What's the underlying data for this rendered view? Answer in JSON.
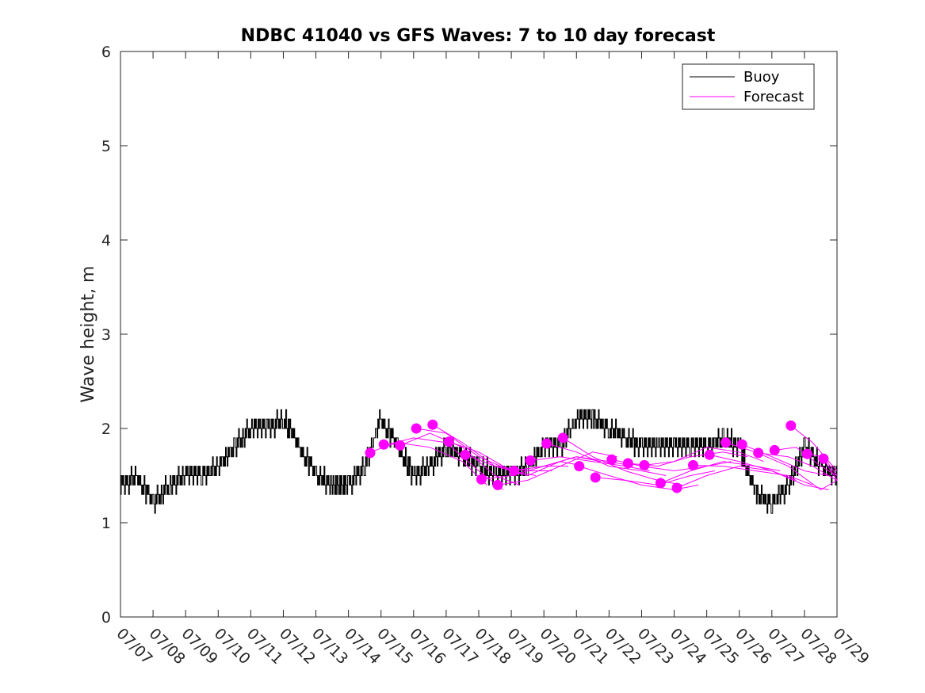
{
  "chart_data": {
    "type": "line",
    "title": "NDBC 41040 vs GFS Waves: 7 to 10 day forecast",
    "xlabel": "",
    "ylabel": "Wave height, m",
    "xlim": [
      "07/07",
      "07/29"
    ],
    "ylim": [
      0,
      6
    ],
    "xticks": [
      "07/07",
      "07/08",
      "07/09",
      "07/10",
      "07/11",
      "07/12",
      "07/13",
      "07/14",
      "07/15",
      "07/16",
      "07/17",
      "07/18",
      "07/19",
      "07/20",
      "07/21",
      "07/22",
      "07/23",
      "07/24",
      "07/25",
      "07/26",
      "07/27",
      "07/28",
      "07/29"
    ],
    "yticks": [
      "0",
      "1",
      "2",
      "3",
      "4",
      "5",
      "6"
    ],
    "grid": false,
    "legend": {
      "position": "top-right",
      "entries": [
        {
          "label": "Buoy",
          "color": "#000000"
        },
        {
          "label": "Forecast",
          "color": "#ff00ff"
        }
      ]
    },
    "series": [
      {
        "name": "Buoy",
        "color": "#000000",
        "x": [
          "07/07",
          "07/07 12:00",
          "07/08",
          "07/08 12:00",
          "07/09",
          "07/09 12:00",
          "07/10",
          "07/10 12:00",
          "07/11",
          "07/11 12:00",
          "07/12",
          "07/12 12:00",
          "07/13",
          "07/13 12:00",
          "07/14",
          "07/14 12:00",
          "07/15",
          "07/15 12:00",
          "07/16",
          "07/16 12:00",
          "07/17",
          "07/17 12:00",
          "07/18",
          "07/18 12:00",
          "07/19",
          "07/19 12:00",
          "07/20",
          "07/20 12:00",
          "07/21",
          "07/21 12:00",
          "07/22",
          "07/22 12:00",
          "07/23",
          "07/23 12:00",
          "07/24",
          "07/24 12:00",
          "07/25",
          "07/25 12:00",
          "07/26",
          "07/26 12:00",
          "07/27",
          "07/27 12:00",
          "07/28",
          "07/28 12:00",
          "07/29"
        ],
        "values": [
          1.4,
          1.5,
          1.2,
          1.4,
          1.5,
          1.5,
          1.6,
          1.8,
          2.0,
          2.0,
          2.1,
          1.8,
          1.5,
          1.4,
          1.4,
          1.6,
          2.1,
          1.8,
          1.5,
          1.6,
          1.8,
          1.7,
          1.6,
          1.5,
          1.5,
          1.6,
          1.8,
          1.8,
          2.1,
          2.1,
          2.0,
          1.9,
          1.8,
          1.8,
          1.8,
          1.8,
          1.8,
          1.9,
          1.8,
          1.3,
          1.2,
          1.4,
          1.8,
          1.6,
          1.5
        ]
      }
    ],
    "forecasts": {
      "color": "#ff00ff",
      "runs": [
        {
          "x": [
            "07/14 16:00",
            "07/15 12:00",
            "07/16 12:00",
            "07/17 12:00",
            "07/18 06:00"
          ],
          "values": [
            1.75,
            1.85,
            1.8,
            1.65,
            1.4
          ],
          "marker": {
            "x": "07/14 16:00",
            "y": 1.74
          }
        },
        {
          "x": [
            "07/15 02:00",
            "07/16 00:00",
            "07/17 00:00",
            "07/18 00:00",
            "07/18 18:00"
          ],
          "values": [
            1.82,
            1.9,
            1.85,
            1.55,
            1.35
          ],
          "marker": {
            "x": "07/15 02:00",
            "y": 1.83
          }
        },
        {
          "x": [
            "07/15 14:00",
            "07/16 12:00",
            "07/17 12:00",
            "07/18 12:00",
            "07/19 06:00"
          ],
          "values": [
            1.82,
            1.95,
            1.8,
            1.5,
            1.4
          ],
          "marker": {
            "x": "07/15 14:00",
            "y": 1.82
          }
        },
        {
          "x": [
            "07/16 02:00",
            "07/17 00:00",
            "07/18 00:00",
            "07/19 00:00",
            "07/19 18:00"
          ],
          "values": [
            2.0,
            1.95,
            1.7,
            1.55,
            1.5
          ],
          "marker": {
            "x": "07/16 02:00",
            "y": 2.0
          }
        },
        {
          "x": [
            "07/16 14:00",
            "07/17 12:00",
            "07/18 12:00",
            "07/19 12:00",
            "07/20 06:00"
          ],
          "values": [
            2.04,
            1.85,
            1.6,
            1.55,
            1.55
          ],
          "marker": {
            "x": "07/16 14:00",
            "y": 2.04
          }
        },
        {
          "x": [
            "07/17 02:00",
            "07/18 00:00",
            "07/19 00:00",
            "07/20 00:00",
            "07/20 18:00"
          ],
          "values": [
            1.86,
            1.75,
            1.55,
            1.6,
            1.6
          ],
          "marker": {
            "x": "07/17 02:00",
            "y": 1.86
          }
        },
        {
          "x": [
            "07/17 14:00",
            "07/18 12:00",
            "07/19 12:00",
            "07/20 12:00",
            "07/21 06:00"
          ],
          "values": [
            1.72,
            1.6,
            1.5,
            1.65,
            1.6
          ],
          "marker": {
            "x": "07/17 14:00",
            "y": 1.72
          }
        },
        {
          "x": [
            "07/18 02:00",
            "07/19 00:00",
            "07/20 00:00",
            "07/21 00:00",
            "07/21 18:00"
          ],
          "values": [
            1.46,
            1.5,
            1.6,
            1.7,
            1.65
          ],
          "marker": {
            "x": "07/18 02:00",
            "y": 1.46
          }
        },
        {
          "x": [
            "07/18 14:00",
            "07/19 12:00",
            "07/20 12:00",
            "07/21 12:00",
            "07/22 06:00"
          ],
          "values": [
            1.4,
            1.45,
            1.6,
            1.75,
            1.7
          ],
          "marker": {
            "x": "07/18 14:00",
            "y": 1.4
          }
        },
        {
          "x": [
            "07/19 02:00",
            "07/20 00:00",
            "07/21 00:00",
            "07/22 00:00",
            "07/22 18:00"
          ],
          "values": [
            1.55,
            1.6,
            1.7,
            1.65,
            1.6
          ],
          "marker": {
            "x": "07/19 02:00",
            "y": 1.55
          }
        },
        {
          "x": [
            "07/19 14:00",
            "07/20 12:00",
            "07/21 12:00",
            "07/22 12:00",
            "07/23 06:00"
          ],
          "values": [
            1.66,
            1.7,
            1.65,
            1.6,
            1.55
          ],
          "marker": {
            "x": "07/19 14:00",
            "y": 1.66
          }
        },
        {
          "x": [
            "07/20 02:00",
            "07/21 00:00",
            "07/22 00:00",
            "07/23 00:00",
            "07/23 18:00"
          ],
          "values": [
            1.84,
            1.75,
            1.6,
            1.55,
            1.5
          ],
          "marker": {
            "x": "07/20 02:00",
            "y": 1.84
          }
        },
        {
          "x": [
            "07/20 14:00",
            "07/21 12:00",
            "07/22 12:00",
            "07/23 12:00",
            "07/24 06:00"
          ],
          "values": [
            1.9,
            1.7,
            1.55,
            1.45,
            1.4
          ],
          "marker": {
            "x": "07/20 14:00",
            "y": 1.9
          }
        },
        {
          "x": [
            "07/21 02:00",
            "07/22 00:00",
            "07/23 00:00",
            "07/24 00:00",
            "07/24 18:00"
          ],
          "values": [
            1.6,
            1.5,
            1.4,
            1.35,
            1.4
          ],
          "marker": {
            "x": "07/21 02:00",
            "y": 1.6
          }
        },
        {
          "x": [
            "07/21 14:00",
            "07/22 12:00",
            "07/23 12:00",
            "07/24 12:00",
            "07/25 06:00"
          ],
          "values": [
            1.48,
            1.45,
            1.4,
            1.5,
            1.55
          ],
          "marker": {
            "x": "07/21 14:00",
            "y": 1.48
          }
        },
        {
          "x": [
            "07/22 02:00",
            "07/23 00:00",
            "07/24 00:00",
            "07/25 00:00",
            "07/25 18:00"
          ],
          "values": [
            1.67,
            1.6,
            1.55,
            1.6,
            1.65
          ],
          "marker": {
            "x": "07/22 02:00",
            "y": 1.67
          }
        },
        {
          "x": [
            "07/22 14:00",
            "07/23 12:00",
            "07/24 12:00",
            "07/25 12:00",
            "07/26 06:00"
          ],
          "values": [
            1.63,
            1.6,
            1.7,
            1.75,
            1.7
          ],
          "marker": {
            "x": "07/22 14:00",
            "y": 1.63
          }
        },
        {
          "x": [
            "07/23 02:00",
            "07/24 00:00",
            "07/25 00:00",
            "07/26 00:00",
            "07/26 18:00"
          ],
          "values": [
            1.61,
            1.65,
            1.8,
            1.75,
            1.65
          ],
          "marker": {
            "x": "07/23 02:00",
            "y": 1.61
          }
        },
        {
          "x": [
            "07/23 14:00",
            "07/24 12:00",
            "07/25 12:00",
            "07/26 12:00",
            "07/27 06:00"
          ],
          "values": [
            1.42,
            1.55,
            1.65,
            1.6,
            1.55
          ],
          "marker": {
            "x": "07/23 14:00",
            "y": 1.42
          }
        },
        {
          "x": [
            "07/24 02:00",
            "07/25 00:00",
            "07/26 00:00",
            "07/27 00:00",
            "07/27 18:00"
          ],
          "values": [
            1.37,
            1.5,
            1.6,
            1.55,
            1.45
          ],
          "marker": {
            "x": "07/24 02:00",
            "y": 1.37
          }
        },
        {
          "x": [
            "07/24 14:00",
            "07/25 12:00",
            "07/26 12:00",
            "07/27 12:00",
            "07/28 06:00"
          ],
          "values": [
            1.61,
            1.6,
            1.55,
            1.5,
            1.4
          ],
          "marker": {
            "x": "07/24 14:00",
            "y": 1.61
          }
        },
        {
          "x": [
            "07/25 02:00",
            "07/26 00:00",
            "07/27 00:00",
            "07/28 00:00",
            "07/28 18:00"
          ],
          "values": [
            1.72,
            1.65,
            1.55,
            1.4,
            1.35
          ],
          "marker": {
            "x": "07/25 02:00",
            "y": 1.72
          }
        },
        {
          "x": [
            "07/25 14:00",
            "07/26 12:00",
            "07/27 12:00",
            "07/28 12:00",
            "07/29 00:00"
          ],
          "values": [
            1.85,
            1.75,
            1.6,
            1.35,
            1.45
          ],
          "marker": {
            "x": "07/25 14:00",
            "y": 1.85
          }
        },
        {
          "x": [
            "07/26 02:00",
            "07/27 00:00",
            "07/28 00:00",
            "07/28 18:00",
            "07/29 00:00"
          ],
          "values": [
            1.83,
            1.7,
            1.55,
            1.5,
            1.45
          ],
          "marker": {
            "x": "07/26 02:00",
            "y": 1.83
          }
        },
        {
          "x": [
            "07/26 14:00",
            "07/27 12:00",
            "07/28 06:00",
            "07/29 00:00"
          ],
          "values": [
            1.74,
            1.7,
            1.6,
            1.45
          ],
          "marker": {
            "x": "07/26 14:00",
            "y": 1.74
          }
        },
        {
          "x": [
            "07/27 02:00",
            "07/27 18:00",
            "07/28 12:00",
            "07/29 00:00"
          ],
          "values": [
            1.77,
            1.8,
            1.6,
            1.5
          ],
          "marker": {
            "x": "07/27 02:00",
            "y": 1.77
          }
        },
        {
          "x": [
            "07/27 14:00",
            "07/28 06:00",
            "07/28 18:00",
            "07/29 00:00"
          ],
          "values": [
            2.03,
            1.85,
            1.65,
            1.55
          ],
          "marker": {
            "x": "07/27 14:00",
            "y": 2.03
          }
        },
        {
          "x": [
            "07/28 02:00",
            "07/28 14:00",
            "07/29 00:00"
          ],
          "values": [
            1.73,
            1.7,
            1.5
          ],
          "marker": {
            "x": "07/28 02:00",
            "y": 1.73
          }
        },
        {
          "x": [
            "07/28 14:00",
            "07/29 00:00"
          ],
          "values": [
            1.68,
            1.45
          ],
          "marker": {
            "x": "07/28 14:00",
            "y": 1.68
          }
        }
      ]
    }
  }
}
